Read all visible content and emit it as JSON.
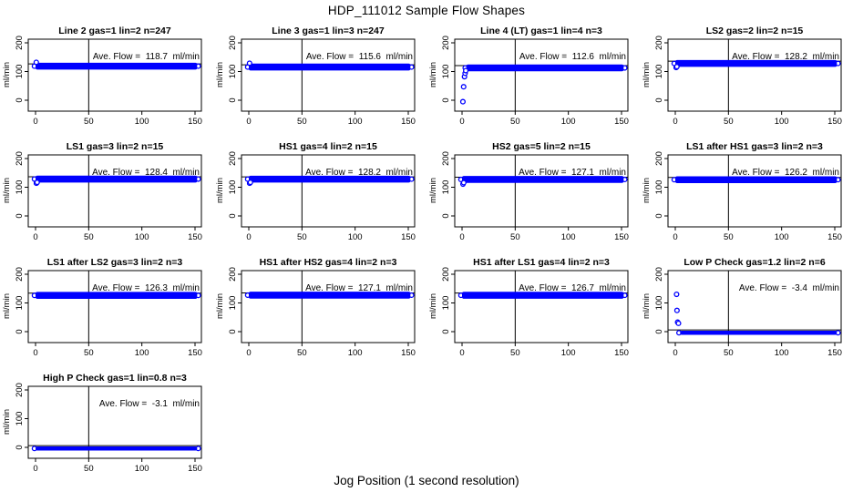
{
  "chart_data": {
    "type": "scatter",
    "title": "HDP_111012  Sample Flow Shapes",
    "xlabel": "Jog Position (1 second resolution)",
    "ylabel": "ml/min",
    "x_ticks": [
      0,
      50,
      100,
      150
    ],
    "y_ticks": [
      0,
      100,
      200
    ],
    "xlim": [
      -7,
      156
    ],
    "ylim": [
      -38,
      213
    ],
    "vline_x": 50,
    "point_color": "#0000ff",
    "axis_color": "#000000",
    "grid": {
      "cols": 4,
      "rows": 4
    },
    "subplots": [
      {
        "title": "Line 2 gas=1 lin=2 n=247",
        "n": 247,
        "ave_flow": 118.7,
        "ave_label": "Ave. Flow =  118.7  ml/min",
        "line_y": 126.7,
        "band": {
          "x0": 0,
          "x1": 152,
          "y_center": 118.7,
          "y_half": 12
        },
        "extra_points": [
          [
            0.7,
            132
          ]
        ]
      },
      {
        "title": "Line 3 gas=1 lin=3 n=247",
        "n": 247,
        "ave_flow": 115.6,
        "ave_label": "Ave. Flow =  115.6  ml/min",
        "line_y": 123.6,
        "band": {
          "x0": 0,
          "x1": 152,
          "y_center": 115.6,
          "y_half": 12
        },
        "extra_points": [
          [
            0.7,
            129
          ]
        ]
      },
      {
        "title": "Line 4 (LT) gas=1 lin=4 n=3",
        "n": 3,
        "ave_flow": 112.6,
        "ave_label": "Ave. Flow =  112.6  ml/min",
        "line_y": 120.6,
        "band": {
          "x0": 4,
          "x1": 152,
          "y_center": 112.6,
          "y_half": 12
        },
        "extra_points": [
          [
            0.8,
            -5
          ],
          [
            1.5,
            47
          ],
          [
            2.3,
            82
          ],
          [
            2.9,
            94
          ],
          [
            3.5,
            103
          ]
        ]
      },
      {
        "title": "LS2 gas=2 lin=2 n=15",
        "n": 15,
        "ave_flow": 128.2,
        "ave_label": "Ave. Flow =  128.2  ml/min",
        "line_y": 136.2,
        "band": {
          "x0": 0,
          "x1": 152,
          "y_center": 128.2,
          "y_half": 12
        },
        "extra_points": [
          [
            0.8,
            114
          ],
          [
            1.5,
            117
          ]
        ]
      },
      {
        "title": "LS1 gas=3 lin=2 n=15",
        "n": 15,
        "ave_flow": 128.4,
        "ave_label": "Ave. Flow =  128.4  ml/min",
        "line_y": 136.4,
        "band": {
          "x0": 0,
          "x1": 152,
          "y_center": 128.4,
          "y_half": 12
        },
        "extra_points": [
          [
            0.8,
            114
          ],
          [
            1.5,
            117
          ]
        ]
      },
      {
        "title": "HS1 gas=4 lin=2 n=15",
        "n": 15,
        "ave_flow": 128.2,
        "ave_label": "Ave. Flow =  128.2  ml/min",
        "line_y": 136.2,
        "band": {
          "x0": 0,
          "x1": 152,
          "y_center": 128.2,
          "y_half": 12
        },
        "extra_points": [
          [
            0.8,
            114
          ],
          [
            1.5,
            117
          ]
        ]
      },
      {
        "title": "HS2 gas=5 lin=2 n=15",
        "n": 15,
        "ave_flow": 127.1,
        "ave_label": "Ave. Flow =  127.1  ml/min",
        "line_y": 135.1,
        "band": {
          "x0": 0,
          "x1": 152,
          "y_center": 127.1,
          "y_half": 12
        },
        "extra_points": [
          [
            0.9,
            111
          ],
          [
            1.6,
            116
          ]
        ]
      },
      {
        "title": "LS1 after HS1 gas=3 lin=2 n=3",
        "n": 3,
        "ave_flow": 126.2,
        "ave_label": "Ave. Flow =  126.2  ml/min",
        "line_y": 134.2,
        "band": {
          "x0": 0,
          "x1": 152,
          "y_center": 126.2,
          "y_half": 12
        },
        "extra_points": []
      },
      {
        "title": "LS1 after LS2 gas=3 lin=2 n=3",
        "n": 3,
        "ave_flow": 126.3,
        "ave_label": "Ave. Flow =  126.3  ml/min",
        "line_y": 134.3,
        "band": {
          "x0": 0,
          "x1": 152,
          "y_center": 126.3,
          "y_half": 12
        },
        "extra_points": []
      },
      {
        "title": "HS1 after HS2 gas=4 lin=2 n=3",
        "n": 3,
        "ave_flow": 127.1,
        "ave_label": "Ave. Flow =  127.1  ml/min",
        "line_y": 135.1,
        "band": {
          "x0": 0,
          "x1": 152,
          "y_center": 127.1,
          "y_half": 12
        },
        "extra_points": []
      },
      {
        "title": "HS1 after LS1 gas=4 lin=2 n=3",
        "n": 3,
        "ave_flow": 126.7,
        "ave_label": "Ave. Flow =  126.7  ml/min",
        "line_y": 134.7,
        "band": {
          "x0": 0,
          "x1": 152,
          "y_center": 126.7,
          "y_half": 12
        },
        "extra_points": []
      },
      {
        "title": "Low P Check gas=1.2 lin=2 n=6",
        "n": 6,
        "ave_flow": -3.4,
        "ave_label": "Ave. Flow =  -3.4  ml/min",
        "line_y": 6,
        "band": {
          "x0": 4.5,
          "x1": 152,
          "y_center": -4,
          "y_half": 7
        },
        "extra_points": [
          [
            1.2,
            130
          ],
          [
            1.6,
            74
          ],
          [
            2.2,
            33
          ],
          [
            3.0,
            29
          ]
        ]
      },
      {
        "title": "High P Check gas=1 lin=0.8 n=3",
        "n": 3,
        "ave_flow": -3.1,
        "ave_label": "Ave. Flow =  -3.1  ml/min",
        "line_y": 6,
        "band": {
          "x0": 0,
          "x1": 152,
          "y_center": -4,
          "y_half": 7
        },
        "extra_points": []
      }
    ]
  }
}
